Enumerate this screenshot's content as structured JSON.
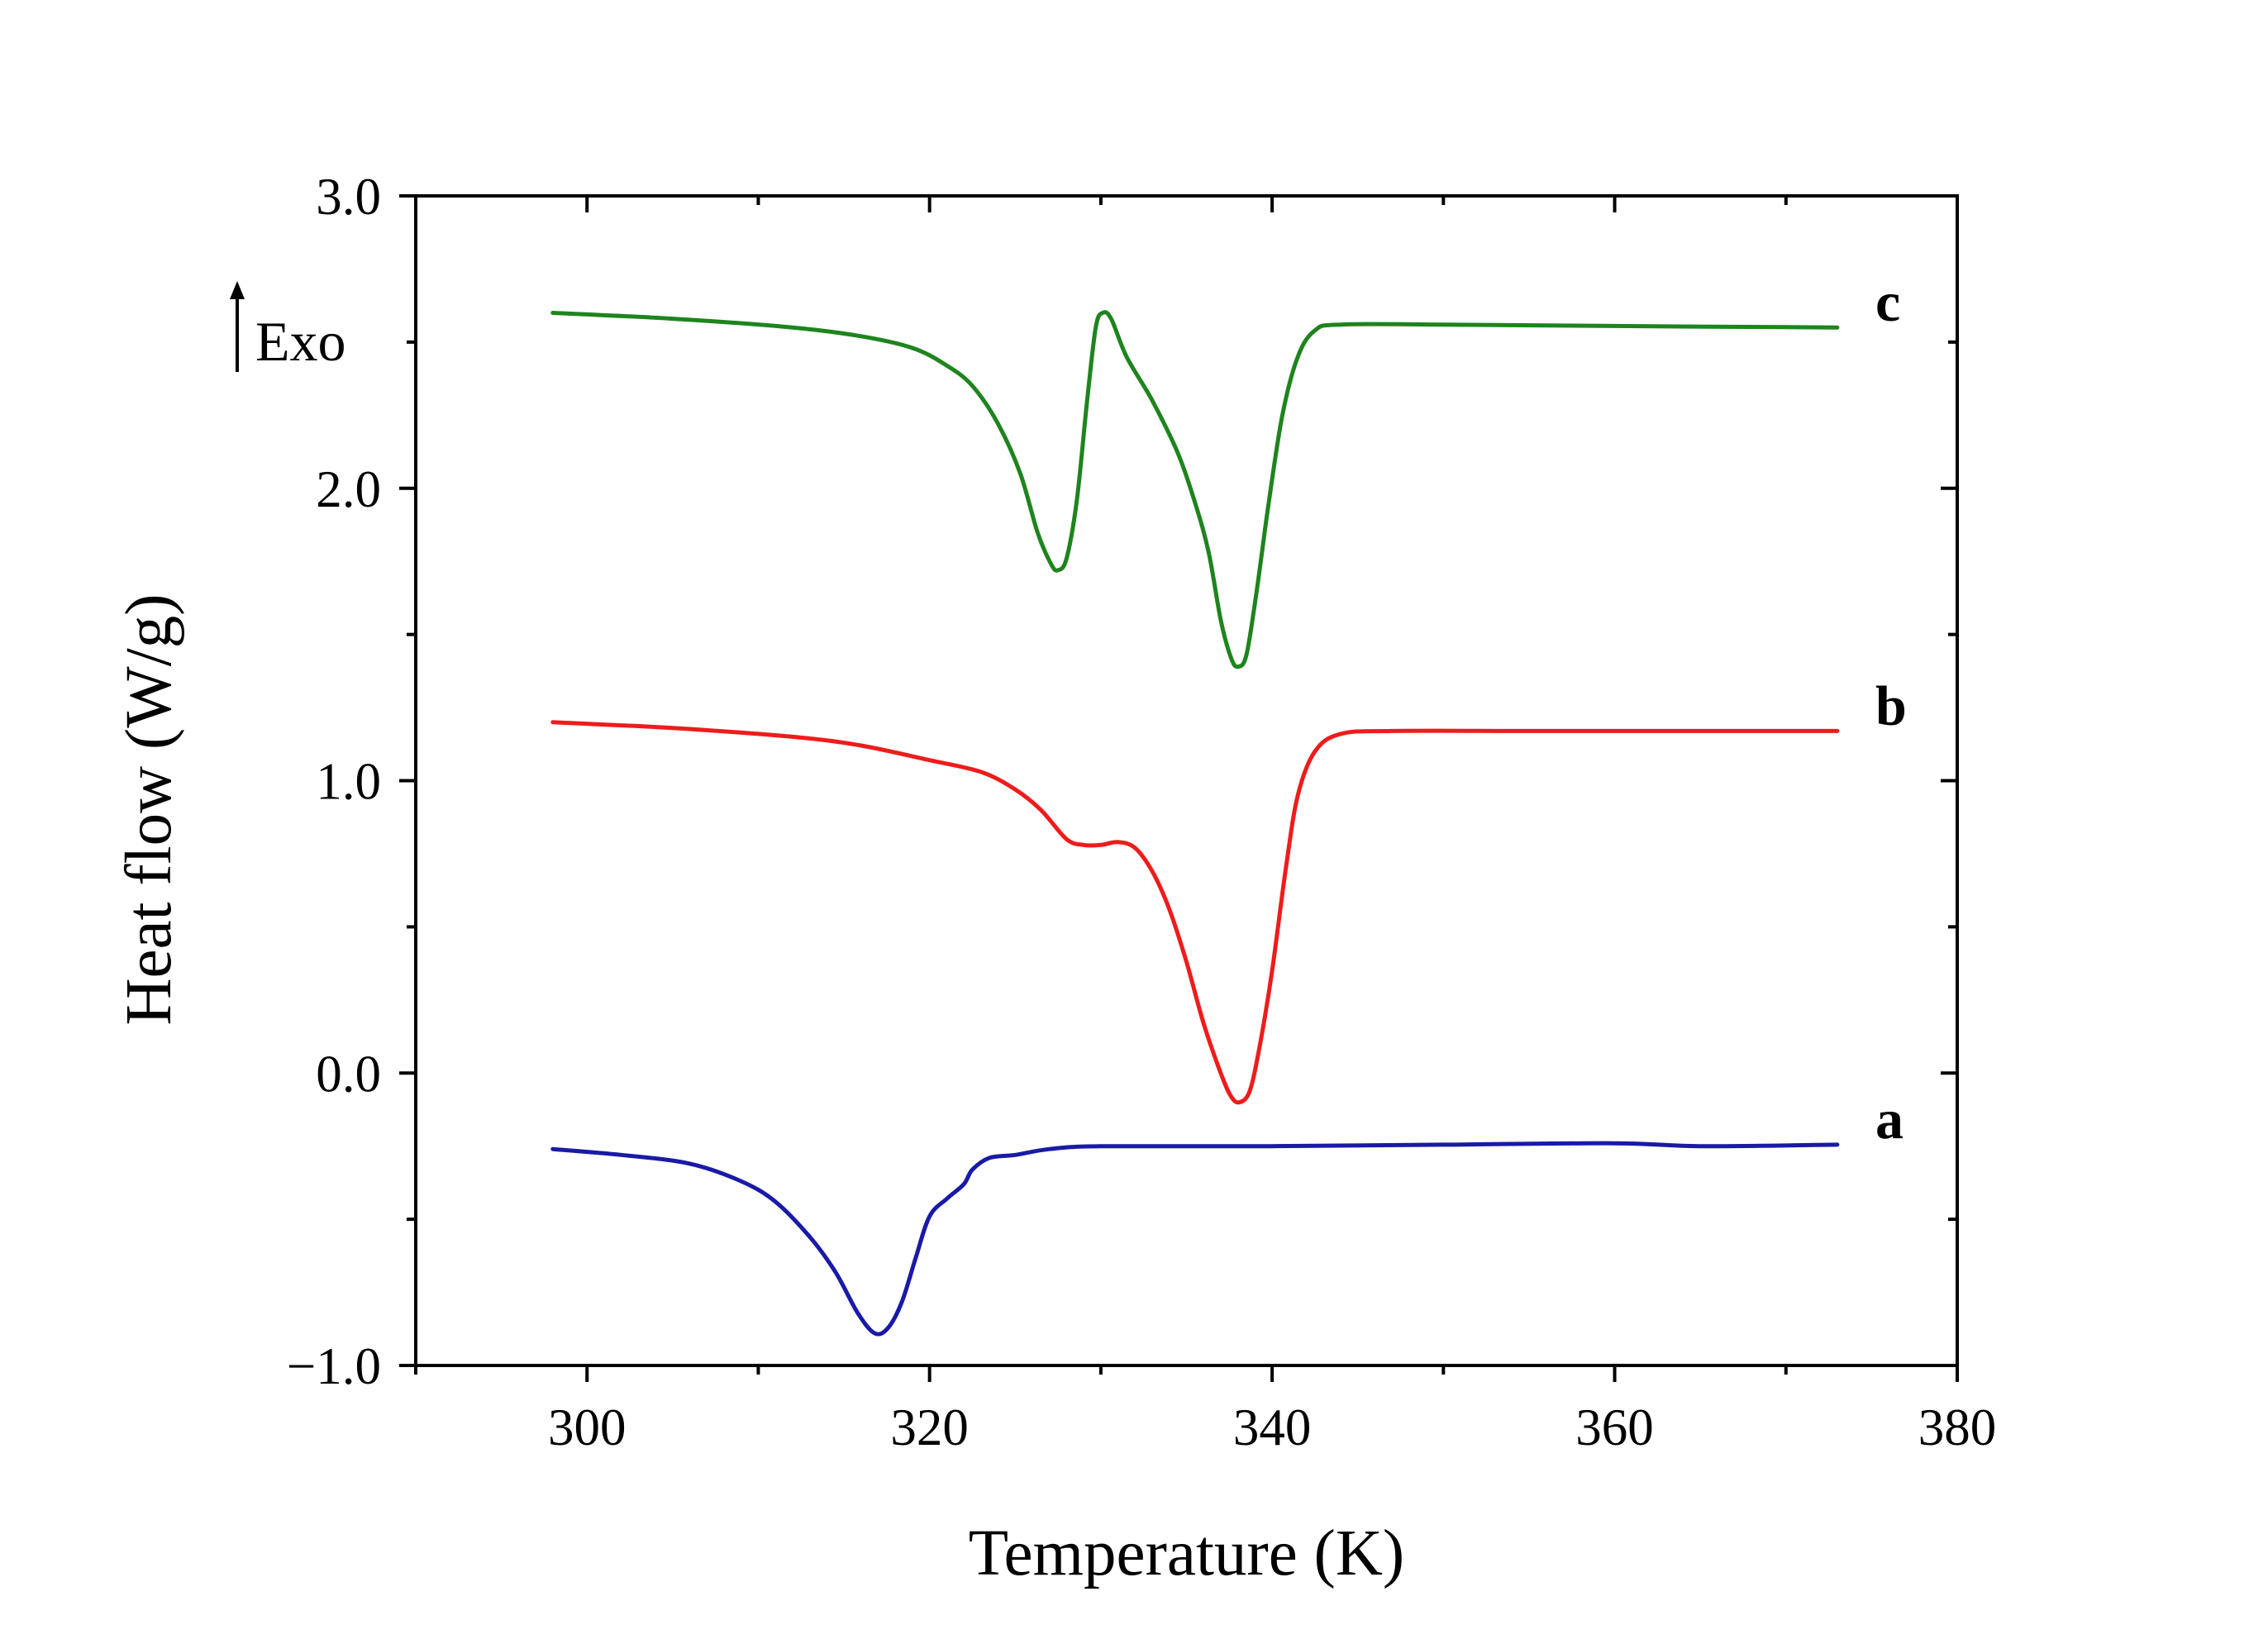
{
  "chart_data": {
    "type": "line",
    "title": "",
    "xlabel": "Temperature (K)",
    "ylabel": "Heat flow (W/g)",
    "xlim": [
      290,
      380
    ],
    "ylim": [
      -1.0,
      3.0
    ],
    "xticks": [
      300,
      320,
      340,
      360,
      380
    ],
    "xtick_labels": [
      "300",
      "320",
      "340",
      "360",
      "380"
    ],
    "xminor": [
      290,
      310,
      330,
      350,
      370
    ],
    "yticks": [
      -1.0,
      0.0,
      1.0,
      2.0,
      3.0
    ],
    "ytick_labels": [
      "−1.0",
      "0.0",
      "1.0",
      "2.0",
      "3.0"
    ],
    "yminor": [
      -0.5,
      0.5,
      1.5,
      2.5
    ],
    "grid": false,
    "annotation": {
      "text": "Exo",
      "arrow": "up"
    },
    "series": [
      {
        "name": "a",
        "color": "#1a1aa6",
        "points": [
          [
            298,
            -0.26
          ],
          [
            302,
            -0.28
          ],
          [
            306,
            -0.31
          ],
          [
            309,
            -0.37
          ],
          [
            311,
            -0.44
          ],
          [
            313,
            -0.56
          ],
          [
            314.5,
            -0.68
          ],
          [
            315.8,
            -0.82
          ],
          [
            316.8,
            -0.89
          ],
          [
            317.6,
            -0.87
          ],
          [
            318.4,
            -0.78
          ],
          [
            319.2,
            -0.63
          ],
          [
            320,
            -0.49
          ],
          [
            321,
            -0.43
          ],
          [
            322,
            -0.38
          ],
          [
            322.5,
            -0.33
          ],
          [
            323.5,
            -0.29
          ],
          [
            325,
            -0.28
          ],
          [
            327,
            -0.26
          ],
          [
            330,
            -0.25
          ],
          [
            340,
            -0.25
          ],
          [
            350,
            -0.245
          ],
          [
            360,
            -0.24
          ],
          [
            365,
            -0.25
          ],
          [
            373,
            -0.245
          ]
        ]
      },
      {
        "name": "b",
        "color": "#ee1c1c",
        "points": [
          [
            298,
            1.2
          ],
          [
            305,
            1.18
          ],
          [
            312,
            1.15
          ],
          [
            316,
            1.12
          ],
          [
            320,
            1.07
          ],
          [
            323,
            1.03
          ],
          [
            325,
            0.97
          ],
          [
            326.5,
            0.9
          ],
          [
            328,
            0.8
          ],
          [
            329,
            0.78
          ],
          [
            330,
            0.78
          ],
          [
            331,
            0.79
          ],
          [
            332,
            0.77
          ],
          [
            333,
            0.69
          ],
          [
            334,
            0.56
          ],
          [
            335,
            0.38
          ],
          [
            336,
            0.17
          ],
          [
            337,
            0.0
          ],
          [
            337.6,
            -0.08
          ],
          [
            338.1,
            -0.1
          ],
          [
            338.7,
            -0.06
          ],
          [
            339.3,
            0.1
          ],
          [
            340,
            0.35
          ],
          [
            340.8,
            0.7
          ],
          [
            341.5,
            0.95
          ],
          [
            342.5,
            1.1
          ],
          [
            344,
            1.16
          ],
          [
            347,
            1.17
          ],
          [
            355,
            1.17
          ],
          [
            365,
            1.17
          ],
          [
            373,
            1.17
          ]
        ]
      },
      {
        "name": "c",
        "color": "#1e841e",
        "points": [
          [
            298,
            2.6
          ],
          [
            305,
            2.58
          ],
          [
            312,
            2.55
          ],
          [
            316,
            2.52
          ],
          [
            319,
            2.48
          ],
          [
            321,
            2.42
          ],
          [
            322.5,
            2.35
          ],
          [
            324,
            2.22
          ],
          [
            325.3,
            2.05
          ],
          [
            326.3,
            1.85
          ],
          [
            327.1,
            1.74
          ],
          [
            327.5,
            1.72
          ],
          [
            328,
            1.76
          ],
          [
            328.6,
            1.96
          ],
          [
            329.2,
            2.3
          ],
          [
            329.7,
            2.55
          ],
          [
            330.1,
            2.6
          ],
          [
            330.6,
            2.58
          ],
          [
            331.5,
            2.45
          ],
          [
            333,
            2.3
          ],
          [
            334.5,
            2.12
          ],
          [
            335.5,
            1.95
          ],
          [
            336.3,
            1.78
          ],
          [
            337,
            1.55
          ],
          [
            337.6,
            1.42
          ],
          [
            338,
            1.39
          ],
          [
            338.5,
            1.43
          ],
          [
            339.1,
            1.65
          ],
          [
            339.8,
            1.95
          ],
          [
            340.6,
            2.25
          ],
          [
            341.5,
            2.45
          ],
          [
            342.5,
            2.54
          ],
          [
            344,
            2.56
          ],
          [
            350,
            2.56
          ],
          [
            360,
            2.555
          ],
          [
            373,
            2.55
          ]
        ]
      }
    ]
  }
}
